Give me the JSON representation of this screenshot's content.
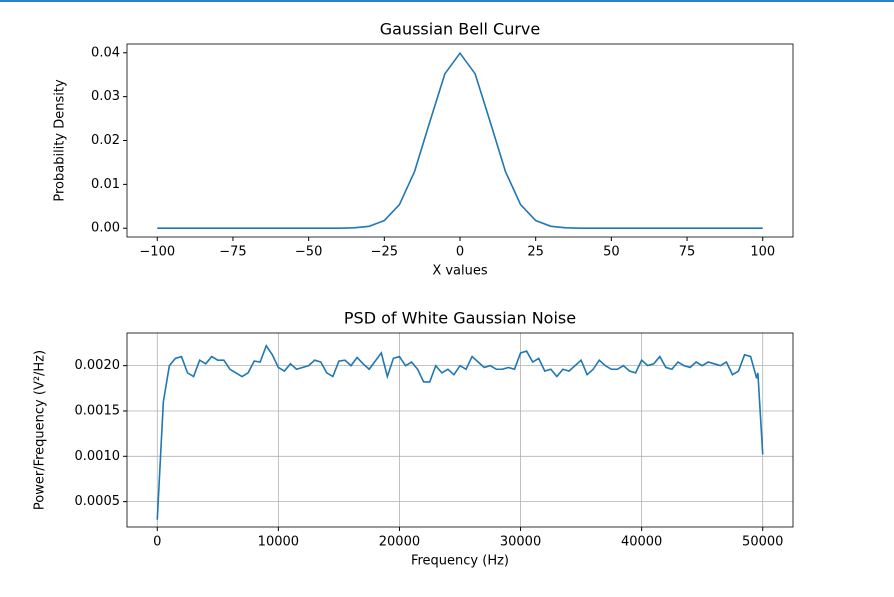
{
  "chart_data": [
    {
      "type": "line",
      "title": "Gaussian Bell Curve",
      "x_label": "X values",
      "y_label": "Probability Density",
      "color": "#1f77b4",
      "grid": false,
      "x": [
        -100,
        -95,
        -90,
        -85,
        -80,
        -75,
        -70,
        -65,
        -60,
        -55,
        -50,
        -45,
        -40,
        -35,
        -30,
        -25,
        -20,
        -15,
        -10,
        -5,
        0,
        5,
        10,
        15,
        20,
        25,
        30,
        35,
        40,
        45,
        50,
        55,
        60,
        65,
        70,
        75,
        80,
        85,
        90,
        95,
        100
      ],
      "values": [
        0,
        0,
        0,
        0,
        0,
        0,
        0,
        0,
        0,
        0,
        0,
        0,
        1.34e-05,
        8.7e-05,
        0.00044,
        0.00175,
        0.0054,
        0.01295,
        0.0242,
        0.0352,
        0.0399,
        0.0352,
        0.0242,
        0.01295,
        0.0054,
        0.00175,
        0.00044,
        8.7e-05,
        1.34e-05,
        0,
        0,
        0,
        0,
        0,
        0,
        0,
        0,
        0,
        0,
        0,
        0
      ],
      "xlim": [
        -110,
        110
      ],
      "ylim": [
        -0.002,
        0.042
      ],
      "xticks": [
        {
          "value": -100,
          "label": "−100"
        },
        {
          "value": -75,
          "label": "−75"
        },
        {
          "value": -50,
          "label": "−50"
        },
        {
          "value": -25,
          "label": "−25"
        },
        0,
        25,
        50,
        75,
        100
      ],
      "yticks": [
        {
          "value": 0,
          "label": "0.00"
        },
        0.01,
        0.02,
        0.03,
        0.04
      ]
    },
    {
      "type": "line",
      "title": "PSD of White Gaussian Noise",
      "x_label": "Frequency (Hz)",
      "y_label": "Power/Frequency (V²/Hz)",
      "color": "#1f77b4",
      "grid": true,
      "x": [
        0,
        500,
        1000,
        1500,
        2000,
        2500,
        3000,
        3500,
        4000,
        4500,
        5000,
        5500,
        6000,
        7000,
        7500,
        8000,
        8500,
        9000,
        9500,
        10000,
        10500,
        11000,
        11500,
        12500,
        13000,
        13500,
        14000,
        14500,
        15000,
        15500,
        16000,
        16500,
        17000,
        17500,
        18500,
        19000,
        19500,
        20000,
        20500,
        21000,
        21500,
        22000,
        22500,
        23000,
        23500,
        24000,
        24500,
        25000,
        25500,
        26000,
        26500,
        27000,
        27500,
        28000,
        28500,
        29000,
        29500,
        30000,
        30500,
        31000,
        31500,
        32000,
        32500,
        33000,
        33500,
        34000,
        34500,
        35000,
        35500,
        36000,
        36500,
        37000,
        37500,
        38000,
        38500,
        39000,
        39500,
        40000,
        40500,
        41000,
        41500,
        42000,
        42500,
        43000,
        43500,
        44000,
        44500,
        45000,
        45500,
        46000,
        46500,
        47000,
        47500,
        48000,
        48500,
        49000,
        49500,
        49600,
        50000
      ],
      "values": [
        0.0003,
        0.0016,
        0.002,
        0.00208,
        0.0021,
        0.00192,
        0.00188,
        0.00206,
        0.00202,
        0.0021,
        0.00206,
        0.00206,
        0.00196,
        0.00188,
        0.00192,
        0.00205,
        0.00204,
        0.00222,
        0.00212,
        0.00198,
        0.00194,
        0.00202,
        0.00196,
        0.002,
        0.00206,
        0.00204,
        0.00192,
        0.00188,
        0.00205,
        0.00206,
        0.002,
        0.00209,
        0.00202,
        0.00196,
        0.00214,
        0.00188,
        0.00208,
        0.0021,
        0.002,
        0.00204,
        0.00196,
        0.00182,
        0.00182,
        0.002,
        0.00192,
        0.00196,
        0.0019,
        0.002,
        0.00196,
        0.0021,
        0.00204,
        0.00198,
        0.002,
        0.00196,
        0.00196,
        0.00198,
        0.00196,
        0.00214,
        0.00216,
        0.00204,
        0.00208,
        0.00194,
        0.00196,
        0.00188,
        0.00196,
        0.00194,
        0.002,
        0.00206,
        0.0019,
        0.00196,
        0.00206,
        0.002,
        0.00196,
        0.00196,
        0.002,
        0.00194,
        0.00192,
        0.00206,
        0.002,
        0.00202,
        0.0021,
        0.00198,
        0.00196,
        0.00204,
        0.002,
        0.00198,
        0.00204,
        0.002,
        0.00204,
        0.00202,
        0.002,
        0.00204,
        0.0019,
        0.00194,
        0.00212,
        0.0021,
        0.00186,
        0.00192,
        0.00102
      ],
      "xlim": [
        -2500,
        52500
      ],
      "ylim": [
        0.00022,
        0.00236
      ],
      "xticks": [
        0,
        10000,
        20000,
        30000,
        40000,
        50000
      ],
      "yticks": [
        0.0005,
        {
          "value": 0.001,
          "label": "0.0010"
        },
        0.0015,
        {
          "value": 0.002,
          "label": "0.0020"
        }
      ]
    }
  ]
}
